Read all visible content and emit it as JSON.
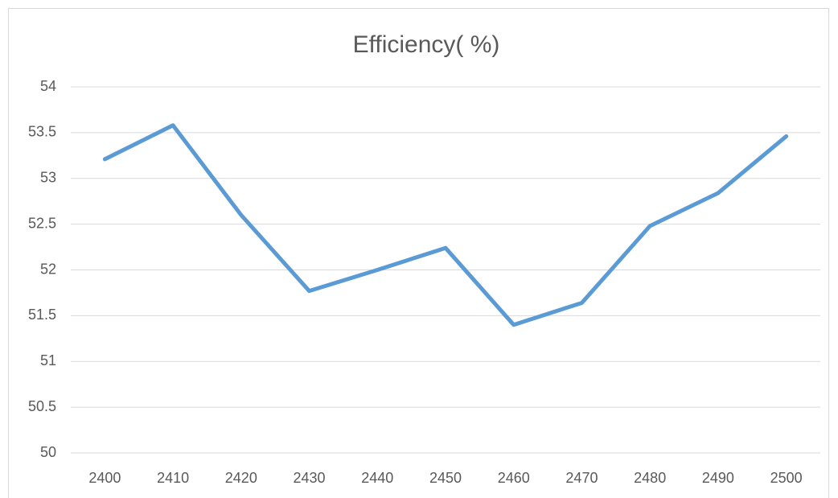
{
  "chart_data": {
    "type": "line",
    "title": "Efficiency( %)",
    "categories": [
      "2400",
      "2410",
      "2420",
      "2430",
      "2440",
      "2450",
      "2460",
      "2470",
      "2480",
      "2490",
      "2500"
    ],
    "values": [
      53.21,
      53.58,
      52.6,
      51.77,
      52.0,
      52.24,
      51.4,
      51.64,
      52.48,
      52.84,
      53.46
    ],
    "color": "#5b9bd5",
    "ylim": [
      50,
      54
    ],
    "yticks": [
      50,
      50.5,
      51,
      51.5,
      52,
      52.5,
      53,
      53.5,
      54
    ],
    "grid": true
  }
}
